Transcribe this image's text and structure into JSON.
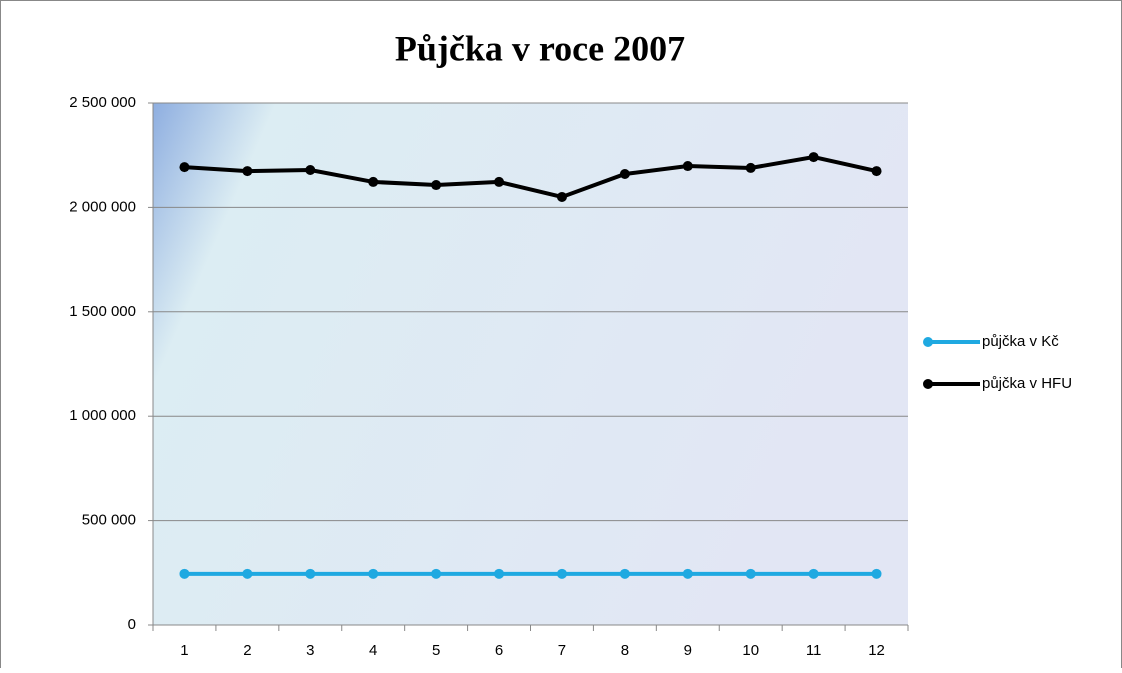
{
  "chart_data": {
    "type": "line",
    "title": "Půjčka v roce 2007",
    "categories": [
      "1",
      "2",
      "3",
      "4",
      "5",
      "6",
      "7",
      "8",
      "9",
      "10",
      "11",
      "12"
    ],
    "series": [
      {
        "name": "půjčka v Kč",
        "color": "#1fa9e1",
        "values": [
          245000,
          245000,
          245000,
          245000,
          245000,
          245000,
          245000,
          245000,
          245000,
          245000,
          245000,
          245000
        ]
      },
      {
        "name": "půjčka v HFU",
        "color": "#000000",
        "values": [
          2193000,
          2174000,
          2179000,
          2122000,
          2107000,
          2122000,
          2050000,
          2160000,
          2198000,
          2189000,
          2241000,
          2174000
        ]
      }
    ],
    "ylim": [
      0,
      2500000
    ],
    "yticks": [
      0,
      {
        "value": 500000,
        "label": "500 000"
      },
      {
        "value": 1000000,
        "label": "1 000 000"
      },
      {
        "value": 1500000,
        "label": "1 500 000"
      },
      {
        "value": 2000000,
        "label": "2 000 000"
      },
      {
        "value": 2500000,
        "label": "2 500 000"
      }
    ],
    "grid": true,
    "legend": "right"
  }
}
